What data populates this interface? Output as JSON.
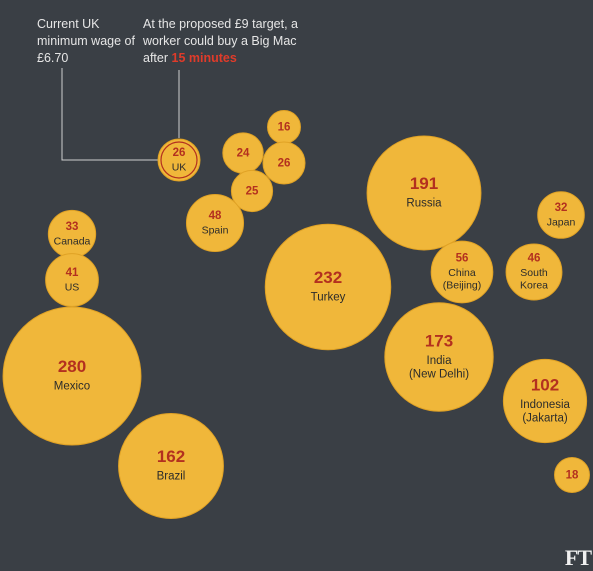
{
  "annotations": {
    "current_wage": "Current UK minimum wage of £6.70",
    "proposed_prefix": "At the proposed £9 target, a worker could buy a Big Mac after",
    "proposed_highlight": "15 minutes"
  },
  "logo_text": "FT",
  "colors": {
    "background": "#3a3f45",
    "bubble": "#f0b73a",
    "bubble_stroke": "#e0a225",
    "overlap": "#d69a2a",
    "value_text": "#b3301f",
    "label_text": "#2b2b2b",
    "annotation_line": "#cfcfcf",
    "highlight": "#e03b2a"
  },
  "chart_data": {
    "type": "bubble",
    "title": "",
    "series": [
      {
        "id": "uk",
        "country": "UK",
        "sublabel": "",
        "value": 26
      },
      {
        "id": "c24",
        "country": "",
        "sublabel": "",
        "value": 24
      },
      {
        "id": "c16",
        "country": "",
        "sublabel": "",
        "value": 16
      },
      {
        "id": "c26",
        "country": "",
        "sublabel": "",
        "value": 26
      },
      {
        "id": "c25",
        "country": "",
        "sublabel": "",
        "value": 25
      },
      {
        "id": "spain",
        "country": "Spain",
        "sublabel": "",
        "value": 48
      },
      {
        "id": "canada",
        "country": "Canada",
        "sublabel": "",
        "value": 33
      },
      {
        "id": "us",
        "country": "US",
        "sublabel": "",
        "value": 41
      },
      {
        "id": "mexico",
        "country": "Mexico",
        "sublabel": "",
        "value": 280
      },
      {
        "id": "brazil",
        "country": "Brazil",
        "sublabel": "",
        "value": 162
      },
      {
        "id": "turkey",
        "country": "Turkey",
        "sublabel": "",
        "value": 232
      },
      {
        "id": "russia",
        "country": "Russia",
        "sublabel": "",
        "value": 191
      },
      {
        "id": "china",
        "country": "China",
        "sublabel": "(Beijing)",
        "value": 56
      },
      {
        "id": "india",
        "country": "India",
        "sublabel": "(New Delhi)",
        "value": 173
      },
      {
        "id": "japan",
        "country": "Japan",
        "sublabel": "",
        "value": 32
      },
      {
        "id": "skorea",
        "country": "South",
        "sublabel": "Korea",
        "value": 46
      },
      {
        "id": "indonesia",
        "country": "Indonesia",
        "sublabel": "(Jakarta)",
        "value": 102
      },
      {
        "id": "c18",
        "country": "",
        "sublabel": "",
        "value": 18
      }
    ]
  }
}
